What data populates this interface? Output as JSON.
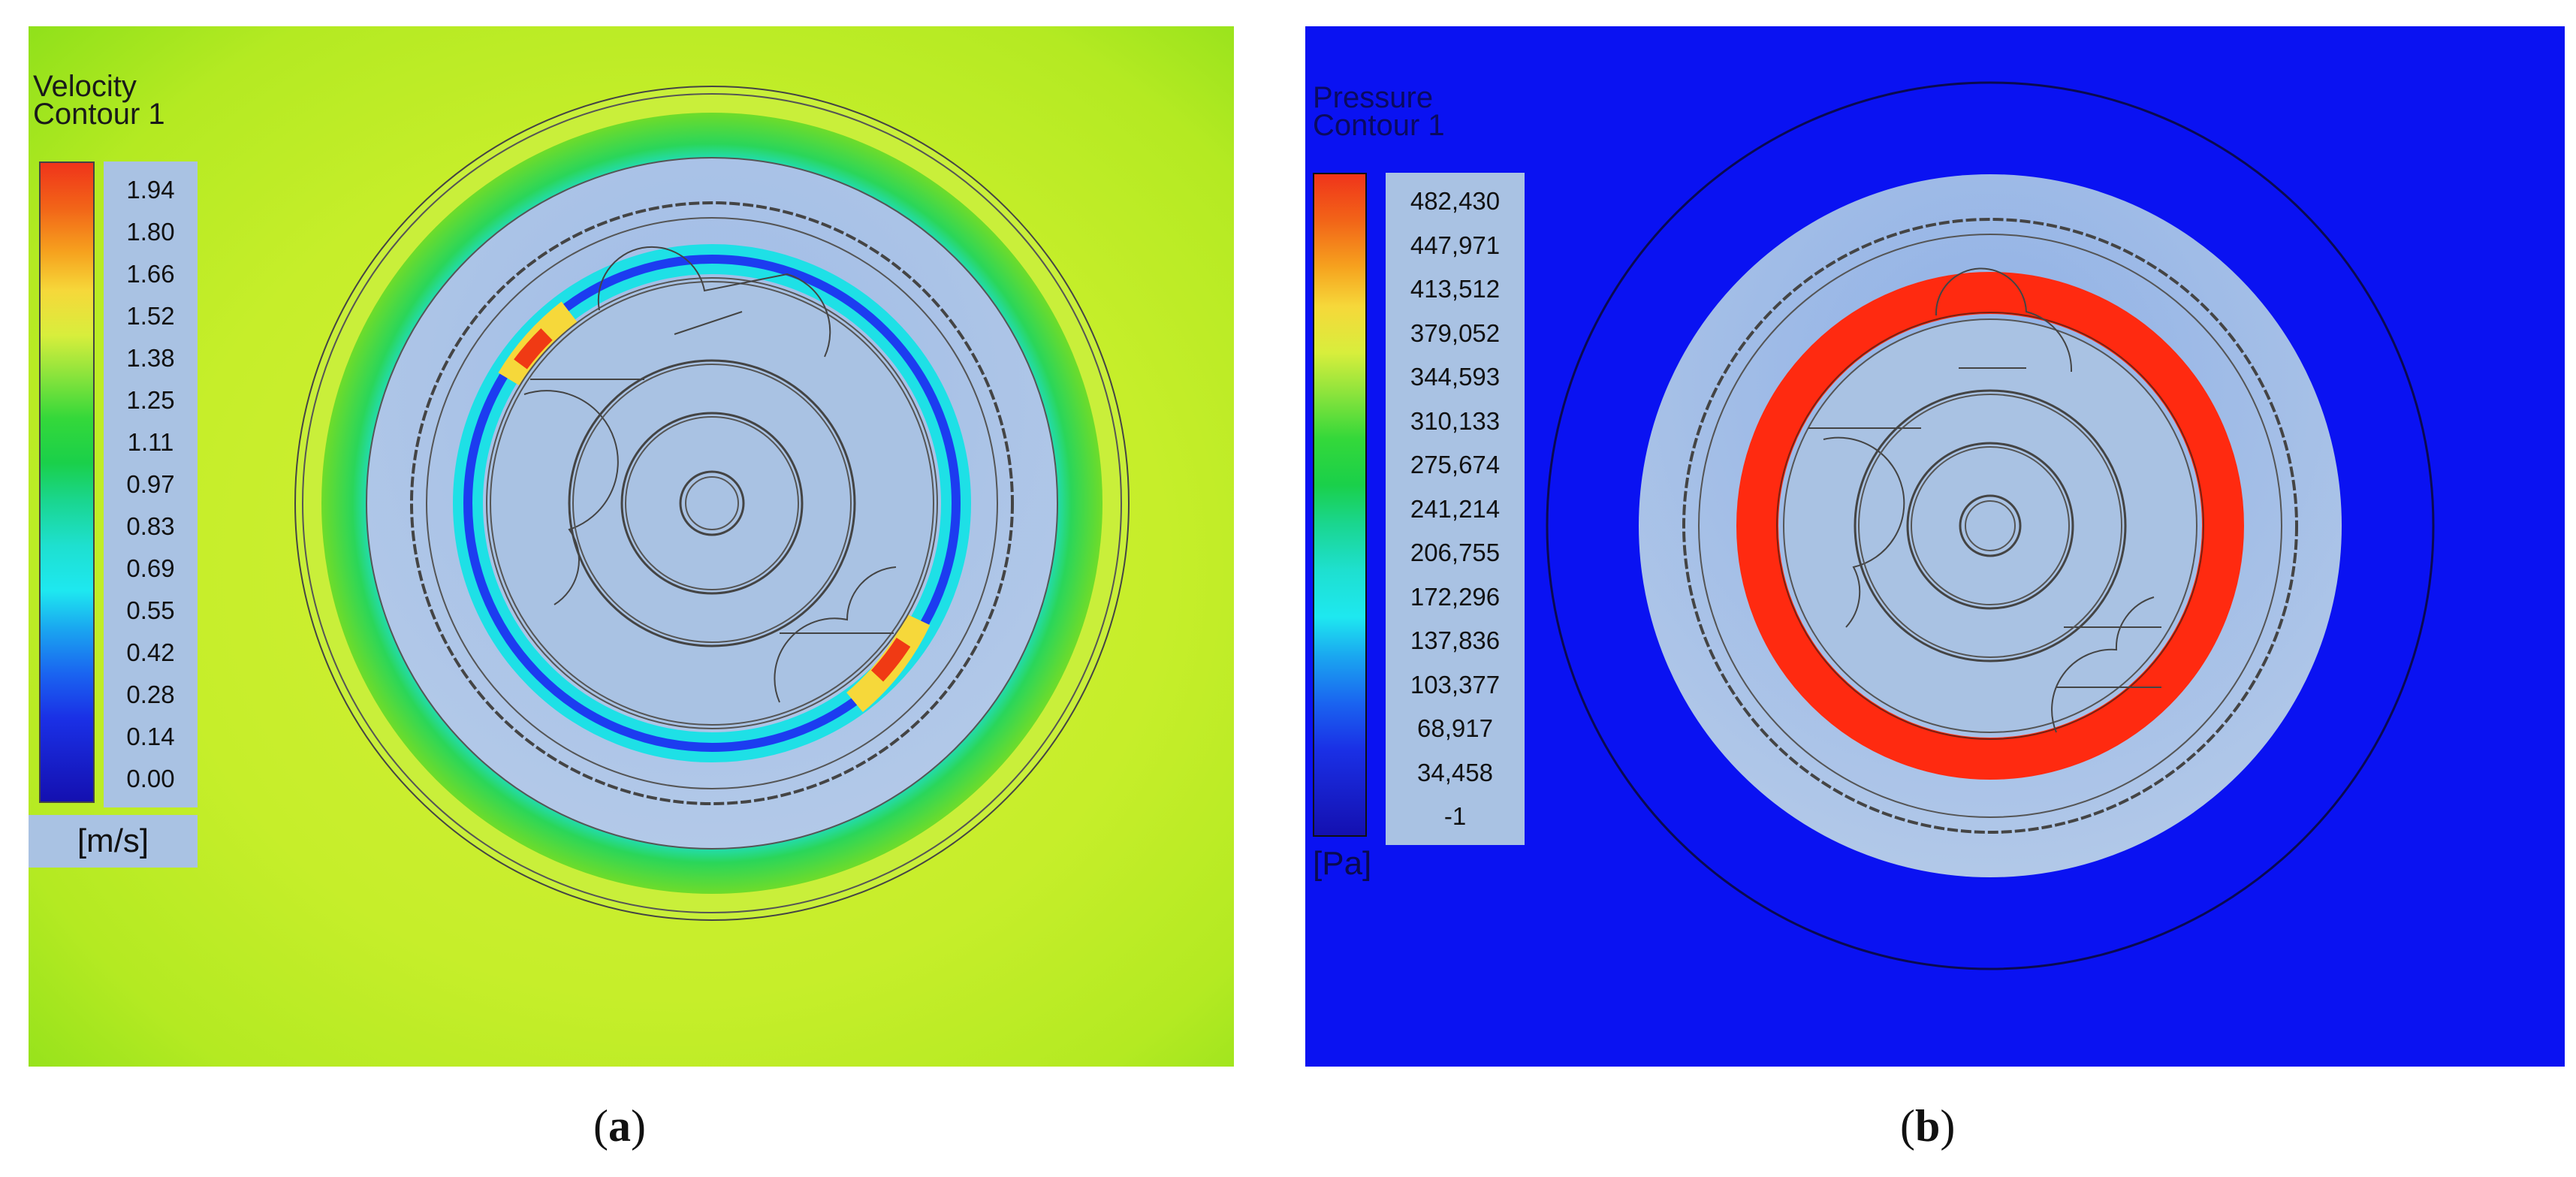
{
  "panels": [
    {
      "id": "a",
      "legend_title_line1": "Velocity",
      "legend_title_line2": "Contour 1",
      "ticks": [
        "1.94",
        "1.80",
        "1.66",
        "1.52",
        "1.38",
        "1.25",
        "1.11",
        "0.97",
        "0.83",
        "0.69",
        "0.55",
        "0.42",
        "0.28",
        "0.14",
        "0.00"
      ],
      "unit": "[m/s]",
      "caption_open": "(",
      "caption_letter": "a",
      "caption_close": ")",
      "colors": {
        "background": "#a6e61a",
        "inner_disc": "#a9c2e3",
        "ring_low": "#1c3cf0",
        "ring_mid": "#1ee0e6",
        "ring_high": "#f03a14"
      }
    },
    {
      "id": "b",
      "legend_title_line1": "Pressure",
      "legend_title_line2": "Contour 1",
      "ticks": [
        "482,430",
        "447,971",
        "413,512",
        "379,052",
        "344,593",
        "310,133",
        "275,674",
        "241,214",
        "206,755",
        "172,296",
        "137,836",
        "103,377",
        "68,917",
        "34,458",
        "-1"
      ],
      "unit": "[Pa]",
      "caption_open": "(",
      "caption_letter": "b",
      "caption_close": ")",
      "colors": {
        "background": "#0a12f2",
        "inner_disc": "#a9c2e3",
        "ring_high": "#ff2a10"
      }
    }
  ]
}
